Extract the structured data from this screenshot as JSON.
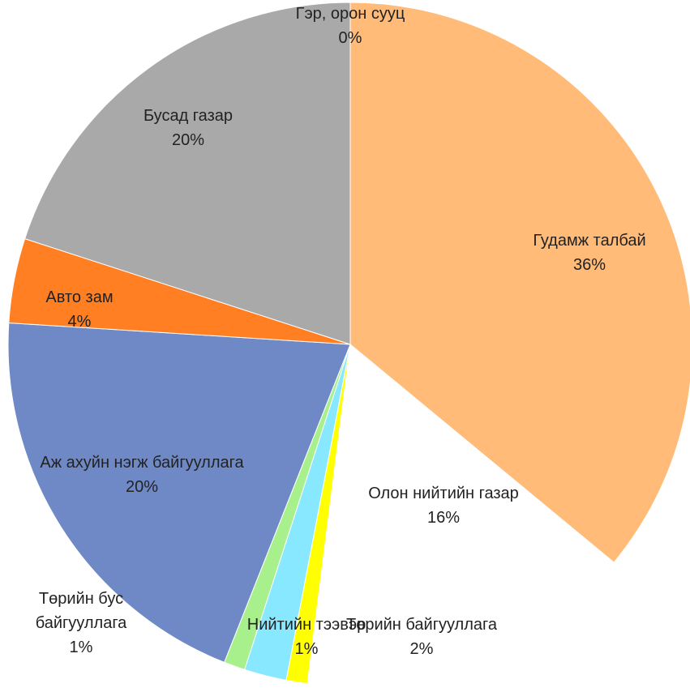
{
  "chart_data": {
    "type": "pie",
    "categories": [
      "Гэр, орон сууц",
      "Гудамж талбай",
      "Олон нийтийн газар",
      "Нийтийн тээвэр",
      "Төрийн байгууллага",
      "Төрийн бус байгууллага",
      "Аж ахуйн нэгж байгууллага",
      "Авто зам",
      "Бусад газар"
    ],
    "values": [
      0,
      36,
      16,
      1,
      2,
      1,
      20,
      4,
      20
    ],
    "value_labels": [
      "0%",
      "36%",
      "16%",
      "1%",
      "2%",
      "1%",
      "20%",
      "4%",
      "20%"
    ],
    "colors": [
      "#ffffff",
      "#ffbb77",
      "#ffffff",
      "#ffff00",
      "#88e8ff",
      "#a8f08c",
      "#6f89c6",
      "#ff7f22",
      "#a9a9a9"
    ]
  }
}
